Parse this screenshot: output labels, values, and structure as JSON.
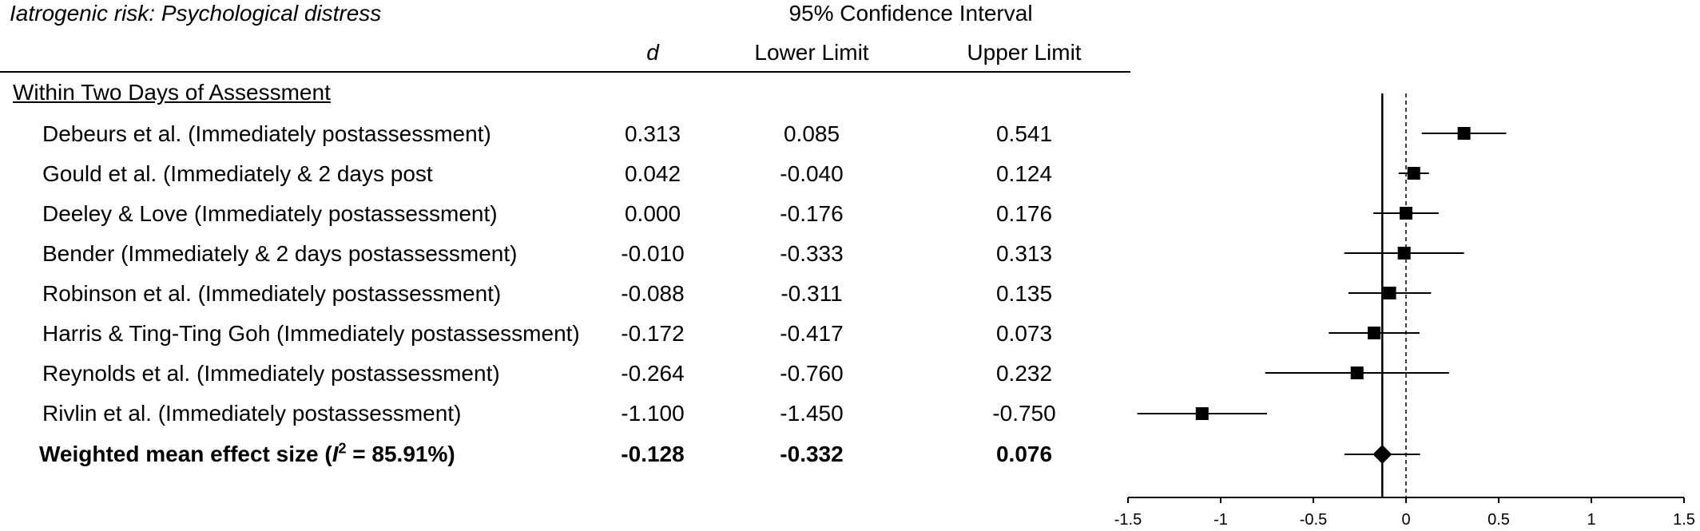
{
  "title": "Iatrogenic risk: Psychological distress",
  "header": {
    "ci_label": "95% Confidence Interval",
    "col_d": "d",
    "col_lower": "Lower Limit",
    "col_upper": "Upper Limit"
  },
  "section_label": "Within Two Days of Assessment",
  "rows": [
    {
      "study": "Debeurs et al. (Immediately postassessment)",
      "d": "0.313",
      "lower": "0.085",
      "upper": "0.541"
    },
    {
      "study": "Gould et al. (Immediately & 2 days post",
      "d": "0.042",
      "lower": "-0.040",
      "upper": "0.124"
    },
    {
      "study": "Deeley & Love (Immediately postassessment)",
      "d": "0.000",
      "lower": "-0.176",
      "upper": "0.176"
    },
    {
      "study": "Bender (Immediately & 2 days postassessment)",
      "d": "-0.010",
      "lower": "-0.333",
      "upper": "0.313"
    },
    {
      "study": "Robinson et al. (Immediately postassessment)",
      "d": "-0.088",
      "lower": "-0.311",
      "upper": "0.135"
    },
    {
      "study": "Harris & Ting-Ting Goh (Immediately postassessment)",
      "d": "-0.172",
      "lower": "-0.417",
      "upper": "0.073"
    },
    {
      "study": "Reynolds et al. (Immediately postassessment)",
      "d": "-0.264",
      "lower": "-0.760",
      "upper": "0.232"
    },
    {
      "study": "Rivlin et al. (Immediately postassessment)",
      "d": "-1.100",
      "lower": "-1.450",
      "upper": "-0.750"
    }
  ],
  "summary": {
    "label_pre": "Weighted mean effect size (",
    "label_i": "I",
    "label_sup": "2",
    "label_post": " = 85.91%)",
    "d": "-0.128",
    "lower": "-0.332",
    "upper": "0.076"
  },
  "chart_data": {
    "type": "scatter",
    "subtype": "forest-plot",
    "xlim": [
      -1.5,
      1.5
    ],
    "xticks": [
      -1.5,
      -1,
      -0.5,
      0,
      0.5,
      1,
      1.5
    ],
    "xtick_labels": [
      "-1.5",
      "-1",
      "-0.5",
      "0",
      "0.5",
      "1",
      "1.5"
    ],
    "reference_lines": [
      {
        "x": 0,
        "style": "dashed"
      },
      {
        "x": -0.128,
        "style": "solid"
      }
    ],
    "points": [
      {
        "d": 0.313,
        "lower": 0.085,
        "upper": 0.541,
        "marker": "square"
      },
      {
        "d": 0.042,
        "lower": -0.04,
        "upper": 0.124,
        "marker": "square"
      },
      {
        "d": 0.0,
        "lower": -0.176,
        "upper": 0.176,
        "marker": "square"
      },
      {
        "d": -0.01,
        "lower": -0.333,
        "upper": 0.313,
        "marker": "square"
      },
      {
        "d": -0.088,
        "lower": -0.311,
        "upper": 0.135,
        "marker": "square"
      },
      {
        "d": -0.172,
        "lower": -0.417,
        "upper": 0.073,
        "marker": "square"
      },
      {
        "d": -0.264,
        "lower": -0.76,
        "upper": 0.232,
        "marker": "square"
      },
      {
        "d": -1.1,
        "lower": -1.45,
        "upper": -0.75,
        "marker": "square"
      },
      {
        "d": -0.128,
        "lower": -0.332,
        "upper": 0.076,
        "marker": "diamond"
      }
    ]
  }
}
